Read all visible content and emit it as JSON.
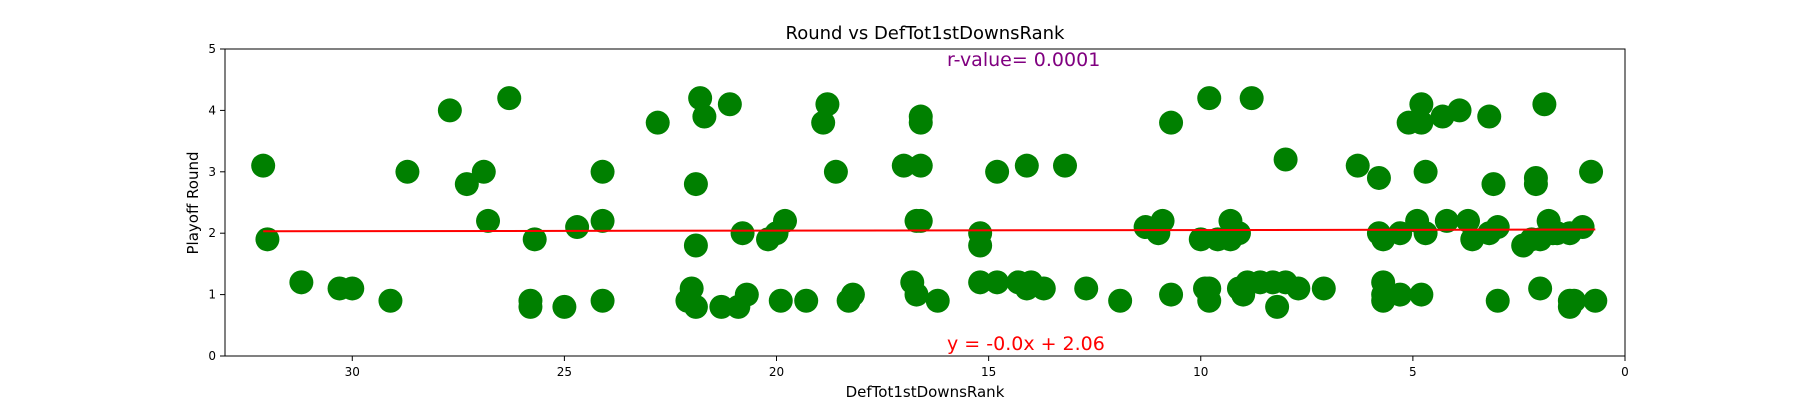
{
  "chart_data": {
    "type": "scatter",
    "title": "Round vs DefTot1stDownsRank",
    "xlabel": "DefTot1stDownsRank",
    "ylabel": "Playoff Round",
    "xlim": [
      33,
      0
    ],
    "ylim": [
      0,
      5
    ],
    "x_inverted": true,
    "xticks": [
      30,
      25,
      20,
      15,
      10,
      5,
      0
    ],
    "yticks": [
      0,
      1,
      2,
      3,
      4,
      5
    ],
    "grid": false,
    "point_color": "#008000",
    "line_color": "#ff0000",
    "annotation_color": "#800080",
    "r_value_text": "r-value= 0.0001",
    "equation_text": "y = -0.0x + 2.06",
    "regression": {
      "slope": -0.0009,
      "intercept": 2.06
    },
    "points": [
      [
        32.1,
        3.1
      ],
      [
        32.0,
        1.9
      ],
      [
        31.2,
        1.2
      ],
      [
        30.3,
        1.1
      ],
      [
        30.0,
        1.1
      ],
      [
        29.1,
        0.9
      ],
      [
        28.7,
        3.0
      ],
      [
        27.7,
        4.0
      ],
      [
        27.3,
        2.8
      ],
      [
        26.9,
        3.0
      ],
      [
        26.8,
        2.2
      ],
      [
        26.3,
        4.2
      ],
      [
        25.8,
        0.9
      ],
      [
        25.8,
        0.8
      ],
      [
        25.7,
        1.9
      ],
      [
        25.0,
        0.8
      ],
      [
        24.7,
        2.1
      ],
      [
        24.1,
        3.0
      ],
      [
        24.1,
        2.2
      ],
      [
        24.1,
        0.9
      ],
      [
        22.8,
        3.8
      ],
      [
        22.1,
        0.9
      ],
      [
        22.0,
        1.1
      ],
      [
        21.9,
        2.8
      ],
      [
        21.9,
        1.8
      ],
      [
        21.9,
        0.8
      ],
      [
        21.8,
        4.2
      ],
      [
        21.7,
        3.9
      ],
      [
        21.3,
        0.8
      ],
      [
        21.1,
        4.1
      ],
      [
        20.9,
        0.8
      ],
      [
        20.8,
        2.0
      ],
      [
        20.7,
        1.0
      ],
      [
        20.2,
        1.9
      ],
      [
        20.0,
        2.0
      ],
      [
        19.9,
        0.9
      ],
      [
        19.8,
        2.2
      ],
      [
        19.3,
        0.9
      ],
      [
        18.9,
        3.8
      ],
      [
        18.8,
        4.1
      ],
      [
        18.6,
        3.0
      ],
      [
        18.3,
        0.9
      ],
      [
        18.2,
        1.0
      ],
      [
        17.0,
        3.1
      ],
      [
        16.8,
        1.2
      ],
      [
        16.7,
        2.2
      ],
      [
        16.7,
        1.0
      ],
      [
        16.6,
        3.9
      ],
      [
        16.6,
        3.8
      ],
      [
        16.6,
        3.1
      ],
      [
        16.6,
        2.2
      ],
      [
        16.2,
        0.9
      ],
      [
        15.2,
        2.0
      ],
      [
        15.2,
        1.8
      ],
      [
        15.2,
        1.2
      ],
      [
        14.8,
        3.0
      ],
      [
        14.8,
        1.2
      ],
      [
        14.3,
        1.2
      ],
      [
        14.1,
        3.1
      ],
      [
        14.1,
        1.1
      ],
      [
        14.0,
        1.2
      ],
      [
        13.7,
        1.1
      ],
      [
        13.2,
        3.1
      ],
      [
        12.7,
        1.1
      ],
      [
        11.9,
        0.9
      ],
      [
        11.3,
        2.1
      ],
      [
        11.0,
        2.0
      ],
      [
        10.9,
        2.2
      ],
      [
        10.7,
        3.8
      ],
      [
        10.7,
        1.0
      ],
      [
        10.0,
        1.9
      ],
      [
        9.9,
        1.1
      ],
      [
        9.8,
        1.1
      ],
      [
        9.8,
        4.2
      ],
      [
        9.8,
        0.9
      ],
      [
        9.6,
        1.9
      ],
      [
        9.3,
        1.9
      ],
      [
        9.3,
        2.2
      ],
      [
        9.1,
        2.0
      ],
      [
        9.1,
        1.1
      ],
      [
        9.0,
        1.0
      ],
      [
        8.9,
        1.2
      ],
      [
        8.8,
        4.2
      ],
      [
        8.6,
        1.2
      ],
      [
        8.3,
        1.2
      ],
      [
        8.2,
        0.8
      ],
      [
        8.0,
        1.2
      ],
      [
        8.0,
        3.2
      ],
      [
        7.7,
        1.1
      ],
      [
        7.1,
        1.1
      ],
      [
        6.3,
        3.1
      ],
      [
        5.8,
        2.0
      ],
      [
        5.8,
        2.9
      ],
      [
        5.7,
        1.9
      ],
      [
        5.7,
        1.2
      ],
      [
        5.7,
        1.0
      ],
      [
        5.7,
        0.9
      ],
      [
        5.3,
        2.0
      ],
      [
        5.3,
        1.0
      ],
      [
        5.1,
        3.8
      ],
      [
        4.9,
        2.2
      ],
      [
        4.8,
        4.1
      ],
      [
        4.8,
        3.8
      ],
      [
        4.8,
        1.0
      ],
      [
        4.7,
        2.0
      ],
      [
        4.7,
        3.0
      ],
      [
        4.3,
        3.9
      ],
      [
        4.2,
        2.2
      ],
      [
        3.9,
        4.0
      ],
      [
        3.7,
        2.2
      ],
      [
        3.6,
        1.9
      ],
      [
        3.2,
        2.0
      ],
      [
        3.2,
        3.9
      ],
      [
        3.1,
        2.8
      ],
      [
        3.0,
        2.1
      ],
      [
        3.0,
        0.9
      ],
      [
        2.4,
        1.8
      ],
      [
        2.2,
        1.9
      ],
      [
        2.1,
        2.9
      ],
      [
        2.1,
        2.8
      ],
      [
        2.0,
        1.9
      ],
      [
        2.0,
        1.1
      ],
      [
        1.9,
        4.1
      ],
      [
        1.8,
        2.2
      ],
      [
        1.7,
        2.0
      ],
      [
        1.6,
        2.0
      ],
      [
        1.3,
        2.0
      ],
      [
        1.3,
        0.8
      ],
      [
        1.3,
        0.9
      ],
      [
        1.2,
        0.9
      ],
      [
        1.0,
        2.1
      ],
      [
        0.8,
        3.0
      ],
      [
        0.7,
        0.9
      ]
    ]
  }
}
